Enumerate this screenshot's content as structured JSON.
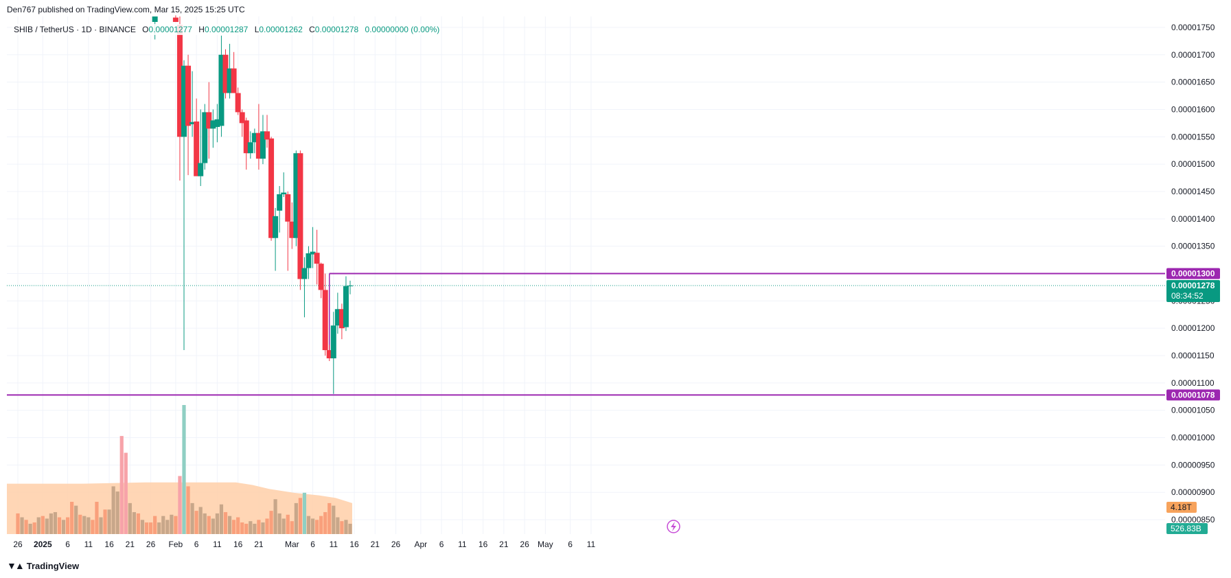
{
  "header": {
    "published_by": "Den767 published on TradingView.com, Mar 15, 2025 15:25 UTC"
  },
  "legend": {
    "symbol": "SHIB / TetherUS · 1D · BINANCE",
    "open_label": "O",
    "open": "0.00001277",
    "high_label": "H",
    "high": "0.00001287",
    "low_label": "L",
    "low": "0.00001262",
    "close_label": "C",
    "close": "0.00001278",
    "change": "0.00000000 (0.00%)"
  },
  "footer": {
    "brand": "TradingView"
  },
  "colors": {
    "up": "#089981",
    "down": "#f23645",
    "line": "#9c27b0",
    "vol_ma": "#ffcfa8",
    "vol_up": "#8fcfc3",
    "vol_down": "#f7a3a9",
    "vol_up_overlay": "#c8a78a",
    "vol_down_overlay": "#f9a07c",
    "grid": "#f0f3fa",
    "price_dotted": "#089981"
  },
  "chart_data": {
    "type": "candlestick",
    "title": "SHIB / TetherUS · 1D · BINANCE",
    "ylim": [
      8.3e-06,
      1.77e-05
    ],
    "y_ticks": [
      "0.00001750",
      "0.00001700",
      "0.00001650",
      "0.00001600",
      "0.00001550",
      "0.00001500",
      "0.00001450",
      "0.00001400",
      "0.00001350",
      "0.00001300",
      "0.00001250",
      "0.00001200",
      "0.00001150",
      "0.00001100",
      "0.00001050",
      "0.00001000",
      "0.00000950",
      "0.00000900",
      "0.00000850"
    ],
    "x_ticks": [
      {
        "i": 0,
        "label": "26"
      },
      {
        "i": 6,
        "label": "2025"
      },
      {
        "i": 12,
        "label": "6"
      },
      {
        "i": 17,
        "label": "11"
      },
      {
        "i": 22,
        "label": "16"
      },
      {
        "i": 27,
        "label": "21"
      },
      {
        "i": 32,
        "label": "26"
      },
      {
        "i": 38,
        "label": "Feb"
      },
      {
        "i": 43,
        "label": "6"
      },
      {
        "i": 48,
        "label": "11"
      },
      {
        "i": 53,
        "label": "16"
      },
      {
        "i": 58,
        "label": "21"
      },
      {
        "i": 66,
        "label": "Mar"
      },
      {
        "i": 71,
        "label": "6"
      },
      {
        "i": 76,
        "label": "11"
      },
      {
        "i": 81,
        "label": "16"
      },
      {
        "i": 86,
        "label": "21"
      },
      {
        "i": 91,
        "label": "26"
      },
      {
        "i": 97,
        "label": "Apr"
      },
      {
        "i": 102,
        "label": "6"
      },
      {
        "i": 107,
        "label": "11"
      },
      {
        "i": 112,
        "label": "16"
      },
      {
        "i": 117,
        "label": "21"
      },
      {
        "i": 122,
        "label": "26"
      },
      {
        "i": 127,
        "label": "May"
      },
      {
        "i": 133,
        "label": "6"
      },
      {
        "i": 138,
        "label": "11"
      }
    ],
    "candles": [
      {
        "i": 33,
        "o": 1.76e-05,
        "h": 1.77e-05,
        "l": 1.728e-05,
        "c": 1.77e-05
      },
      {
        "i": 38,
        "o": 1.768e-05,
        "h": 1.772e-05,
        "l": 1.76e-05,
        "c": 1.76e-05
      },
      {
        "i": 39,
        "o": 1.755e-05,
        "h": 1.77e-05,
        "l": 1.47e-05,
        "c": 1.55e-05
      },
      {
        "i": 40,
        "o": 1.55e-05,
        "h": 1.69e-05,
        "l": 1.16e-05,
        "c": 1.68e-05
      },
      {
        "i": 41,
        "o": 1.68e-05,
        "h": 1.7e-05,
        "l": 1.48e-05,
        "c": 1.57e-05
      },
      {
        "i": 42,
        "o": 1.573e-05,
        "h": 1.67e-05,
        "l": 1.55e-05,
        "c": 1.577e-05
      },
      {
        "i": 43,
        "o": 1.578e-05,
        "h": 1.62e-05,
        "l": 1.48e-05,
        "c": 1.478e-05
      },
      {
        "i": 44,
        "o": 1.478e-05,
        "h": 1.6e-05,
        "l": 1.46e-05,
        "c": 1.502e-05
      },
      {
        "i": 45,
        "o": 1.502e-05,
        "h": 1.61e-05,
        "l": 1.49e-05,
        "c": 1.595e-05
      },
      {
        "i": 46,
        "o": 1.595e-05,
        "h": 1.65e-05,
        "l": 1.51e-05,
        "c": 1.565e-05
      },
      {
        "i": 47,
        "o": 1.565e-05,
        "h": 1.6e-05,
        "l": 1.53e-05,
        "c": 1.58e-05
      },
      {
        "i": 48,
        "o": 1.568e-05,
        "h": 1.61e-05,
        "l": 1.54e-05,
        "c": 1.582e-05
      },
      {
        "i": 49,
        "o": 1.57e-05,
        "h": 1.735e-05,
        "l": 1.55e-05,
        "c": 1.7e-05
      },
      {
        "i": 50,
        "o": 1.7e-05,
        "h": 1.71e-05,
        "l": 1.62e-05,
        "c": 1.63e-05
      },
      {
        "i": 51,
        "o": 1.63e-05,
        "h": 1.72e-05,
        "l": 1.62e-05,
        "c": 1.675e-05
      },
      {
        "i": 52,
        "o": 1.675e-05,
        "h": 1.705e-05,
        "l": 1.63e-05,
        "c": 1.63e-05
      },
      {
        "i": 53,
        "o": 1.63e-05,
        "h": 1.64e-05,
        "l": 1.59e-05,
        "c": 1.595e-05
      },
      {
        "i": 54,
        "o": 1.595e-05,
        "h": 1.6e-05,
        "l": 1.55e-05,
        "c": 1.575e-05
      },
      {
        "i": 55,
        "o": 1.58e-05,
        "h": 1.585e-05,
        "l": 1.49e-05,
        "c": 1.52e-05
      },
      {
        "i": 56,
        "o": 1.52e-05,
        "h": 1.56e-05,
        "l": 1.51e-05,
        "c": 1.54e-05
      },
      {
        "i": 57,
        "o": 1.54e-05,
        "h": 1.565e-05,
        "l": 1.52e-05,
        "c": 1.557e-05
      },
      {
        "i": 58,
        "o": 1.557e-05,
        "h": 1.61e-05,
        "l": 1.49e-05,
        "c": 1.51e-05
      },
      {
        "i": 59,
        "o": 1.51e-05,
        "h": 1.59e-05,
        "l": 1.5e-05,
        "c": 1.56e-05
      },
      {
        "i": 60,
        "o": 1.56e-05,
        "h": 1.59e-05,
        "l": 1.53e-05,
        "c": 1.545e-05
      },
      {
        "i": 61,
        "o": 1.547e-05,
        "h": 1.55e-05,
        "l": 1.36e-05,
        "c": 1.365e-05
      },
      {
        "i": 62,
        "o": 1.365e-05,
        "h": 1.42e-05,
        "l": 1.305e-05,
        "c": 1.405e-05
      },
      {
        "i": 63,
        "o": 1.415e-05,
        "h": 1.46e-05,
        "l": 1.375e-05,
        "c": 1.445e-05
      },
      {
        "i": 64,
        "o": 1.445e-05,
        "h": 1.485e-05,
        "l": 1.44e-05,
        "c": 1.448e-05
      },
      {
        "i": 65,
        "o": 1.445e-05,
        "h": 1.45e-05,
        "l": 1.305e-05,
        "c": 1.395e-05
      },
      {
        "i": 66,
        "o": 1.395e-05,
        "h": 1.43e-05,
        "l": 1.345e-05,
        "c": 1.365e-05
      },
      {
        "i": 67,
        "o": 1.365e-05,
        "h": 1.525e-05,
        "l": 1.35e-05,
        "c": 1.52e-05
      },
      {
        "i": 68,
        "o": 1.52e-05,
        "h": 1.525e-05,
        "l": 1.27e-05,
        "c": 1.29e-05
      },
      {
        "i": 69,
        "o": 1.29e-05,
        "h": 1.33e-05,
        "l": 1.22e-05,
        "c": 1.31e-05
      },
      {
        "i": 70,
        "o": 1.31e-05,
        "h": 1.35e-05,
        "l": 1.29e-05,
        "c": 1.337e-05
      },
      {
        "i": 71,
        "o": 1.335e-05,
        "h": 1.385e-05,
        "l": 1.31e-05,
        "c": 1.34e-05
      },
      {
        "i": 72,
        "o": 1.338e-05,
        "h": 1.38e-05,
        "l": 1.28e-05,
        "c": 1.318e-05
      },
      {
        "i": 73,
        "o": 1.318e-05,
        "h": 1.32e-05,
        "l": 1.255e-05,
        "c": 1.27e-05
      },
      {
        "i": 74,
        "o": 1.27e-05,
        "h": 1.3e-05,
        "l": 1.15e-05,
        "c": 1.16e-05
      },
      {
        "i": 75,
        "o": 1.16e-05,
        "h": 1.17e-05,
        "l": 1.14e-05,
        "c": 1.145e-05
      },
      {
        "i": 76,
        "o": 1.145e-05,
        "h": 1.23e-05,
        "l": 1.08e-05,
        "c": 1.205e-05
      },
      {
        "i": 77,
        "o": 1.205e-05,
        "h": 1.265e-05,
        "l": 1.19e-05,
        "c": 1.235e-05
      },
      {
        "i": 78,
        "o": 1.235e-05,
        "h": 1.245e-05,
        "l": 1.18e-05,
        "c": 1.2e-05
      },
      {
        "i": 79,
        "o": 1.202e-05,
        "h": 1.295e-05,
        "l": 1.195e-05,
        "c": 1.277e-05
      },
      {
        "i": 80,
        "o": 1.277e-05,
        "h": 1.287e-05,
        "l": 1.262e-05,
        "c": 1.278e-05
      }
    ],
    "volume": {
      "max": 100,
      "bars": [
        {
          "i": 0,
          "v": 16,
          "d": "down"
        },
        {
          "i": 1,
          "v": 13,
          "d": "up"
        },
        {
          "i": 2,
          "v": 11,
          "d": "down"
        },
        {
          "i": 3,
          "v": 8,
          "d": "up"
        },
        {
          "i": 4,
          "v": 9,
          "d": "down"
        },
        {
          "i": 5,
          "v": 13,
          "d": "up"
        },
        {
          "i": 6,
          "v": 14,
          "d": "down"
        },
        {
          "i": 7,
          "v": 12,
          "d": "up"
        },
        {
          "i": 8,
          "v": 16,
          "d": "up"
        },
        {
          "i": 9,
          "v": 17,
          "d": "up"
        },
        {
          "i": 10,
          "v": 13,
          "d": "down"
        },
        {
          "i": 11,
          "v": 11,
          "d": "up"
        },
        {
          "i": 12,
          "v": 13,
          "d": "down"
        },
        {
          "i": 13,
          "v": 25,
          "d": "down"
        },
        {
          "i": 14,
          "v": 22,
          "d": "up"
        },
        {
          "i": 15,
          "v": 15,
          "d": "down"
        },
        {
          "i": 16,
          "v": 14,
          "d": "up"
        },
        {
          "i": 17,
          "v": 13,
          "d": "up"
        },
        {
          "i": 18,
          "v": 11,
          "d": "down"
        },
        {
          "i": 19,
          "v": 25,
          "d": "down"
        },
        {
          "i": 20,
          "v": 13,
          "d": "up"
        },
        {
          "i": 21,
          "v": 19,
          "d": "down"
        },
        {
          "i": 22,
          "v": 19,
          "d": "up"
        },
        {
          "i": 23,
          "v": 37,
          "d": "up"
        },
        {
          "i": 24,
          "v": 33,
          "d": "up"
        },
        {
          "i": 25,
          "v": 76,
          "d": "down"
        },
        {
          "i": 26,
          "v": 63,
          "d": "down"
        },
        {
          "i": 27,
          "v": 24,
          "d": "up"
        },
        {
          "i": 28,
          "v": 17,
          "d": "up"
        },
        {
          "i": 29,
          "v": 16,
          "d": "down"
        },
        {
          "i": 30,
          "v": 11,
          "d": "up"
        },
        {
          "i": 31,
          "v": 9,
          "d": "down"
        },
        {
          "i": 32,
          "v": 9,
          "d": "down"
        },
        {
          "i": 33,
          "v": 14,
          "d": "down"
        },
        {
          "i": 34,
          "v": 9,
          "d": "up"
        },
        {
          "i": 35,
          "v": 14,
          "d": "up"
        },
        {
          "i": 36,
          "v": 11,
          "d": "up"
        },
        {
          "i": 37,
          "v": 15,
          "d": "up"
        },
        {
          "i": 38,
          "v": 14,
          "d": "down"
        },
        {
          "i": 39,
          "v": 45,
          "d": "down"
        },
        {
          "i": 40,
          "v": 100,
          "d": "up"
        },
        {
          "i": 41,
          "v": 37,
          "d": "down"
        },
        {
          "i": 42,
          "v": 24,
          "d": "up"
        },
        {
          "i": 43,
          "v": 18,
          "d": "down"
        },
        {
          "i": 44,
          "v": 21,
          "d": "up"
        },
        {
          "i": 45,
          "v": 16,
          "d": "up"
        },
        {
          "i": 46,
          "v": 14,
          "d": "down"
        },
        {
          "i": 47,
          "v": 12,
          "d": "up"
        },
        {
          "i": 48,
          "v": 16,
          "d": "up"
        },
        {
          "i": 49,
          "v": 23,
          "d": "up"
        },
        {
          "i": 50,
          "v": 17,
          "d": "down"
        },
        {
          "i": 51,
          "v": 14,
          "d": "up"
        },
        {
          "i": 52,
          "v": 11,
          "d": "down"
        },
        {
          "i": 53,
          "v": 13,
          "d": "down"
        },
        {
          "i": 54,
          "v": 9,
          "d": "down"
        },
        {
          "i": 55,
          "v": 8,
          "d": "down"
        },
        {
          "i": 56,
          "v": 10,
          "d": "up"
        },
        {
          "i": 57,
          "v": 8,
          "d": "up"
        },
        {
          "i": 58,
          "v": 11,
          "d": "down"
        },
        {
          "i": 59,
          "v": 9,
          "d": "up"
        },
        {
          "i": 60,
          "v": 12,
          "d": "down"
        },
        {
          "i": 61,
          "v": 18,
          "d": "down"
        },
        {
          "i": 62,
          "v": 27,
          "d": "up"
        },
        {
          "i": 63,
          "v": 16,
          "d": "up"
        },
        {
          "i": 64,
          "v": 12,
          "d": "up"
        },
        {
          "i": 65,
          "v": 15,
          "d": "down"
        },
        {
          "i": 66,
          "v": 10,
          "d": "down"
        },
        {
          "i": 67,
          "v": 24,
          "d": "up"
        },
        {
          "i": 68,
          "v": 28,
          "d": "down"
        },
        {
          "i": 69,
          "v": 32,
          "d": "up"
        },
        {
          "i": 70,
          "v": 14,
          "d": "up"
        },
        {
          "i": 71,
          "v": 12,
          "d": "up"
        },
        {
          "i": 72,
          "v": 11,
          "d": "down"
        },
        {
          "i": 73,
          "v": 14,
          "d": "down"
        },
        {
          "i": 74,
          "v": 17,
          "d": "down"
        },
        {
          "i": 75,
          "v": 24,
          "d": "down"
        },
        {
          "i": 76,
          "v": 22,
          "d": "up"
        },
        {
          "i": 77,
          "v": 13,
          "d": "up"
        },
        {
          "i": 78,
          "v": 10,
          "d": "down"
        },
        {
          "i": 79,
          "v": 11,
          "d": "up"
        },
        {
          "i": 80,
          "v": 8,
          "d": "up"
        }
      ],
      "ma": [
        {
          "i": 0,
          "v": 39
        },
        {
          "i": 15,
          "v": 39
        },
        {
          "i": 30,
          "v": 40
        },
        {
          "i": 40,
          "v": 40
        },
        {
          "i": 52,
          "v": 40
        },
        {
          "i": 56,
          "v": 38
        },
        {
          "i": 60,
          "v": 35
        },
        {
          "i": 66,
          "v": 32
        },
        {
          "i": 72,
          "v": 30
        },
        {
          "i": 76,
          "v": 28
        },
        {
          "i": 80,
          "v": 24
        }
      ],
      "value_label": "4.18T",
      "ma_label": "526.83B"
    },
    "horizontal_lines": [
      {
        "price": 1.3e-05,
        "label": "0.00001300",
        "from_i": 75
      },
      {
        "price": 1.078e-05,
        "label": "0.00001078",
        "from_i": -2
      }
    ],
    "current_price": {
      "price": 1.278e-05,
      "label": "0.00001278",
      "countdown": "08:34:52"
    }
  }
}
